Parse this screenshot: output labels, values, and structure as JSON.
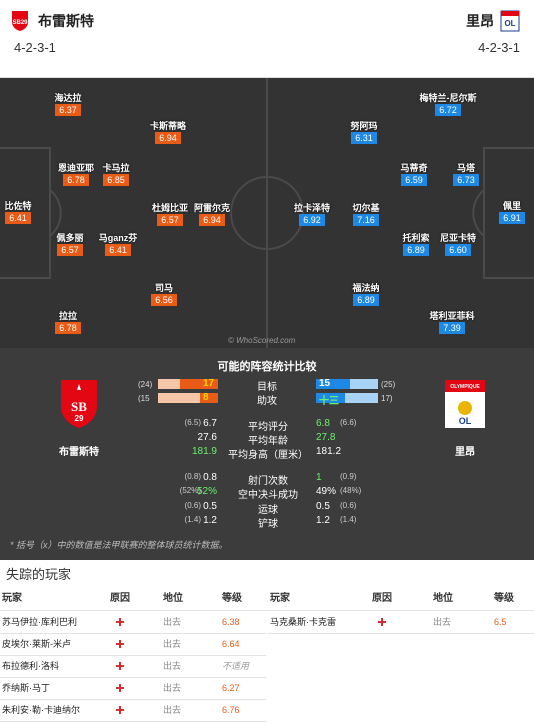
{
  "header": {
    "home_name": "布雷斯特",
    "away_name": "里昂",
    "home_formation": "4-2-3-1",
    "away_formation": "4-2-3-1"
  },
  "pitch": {
    "watermark": "© WhoScored.com",
    "home_players": [
      {
        "name": "比佐特",
        "rating": "6.41"
      },
      {
        "name": "海达拉",
        "rating": "6.37"
      },
      {
        "name": "恩迪亚耶",
        "rating": "6.78"
      },
      {
        "name": "卡马拉",
        "rating": "6.85"
      },
      {
        "name": "杜姆比亚",
        "rating": "6.57"
      },
      {
        "name": "阿雷尔克",
        "rating": "6.94"
      },
      {
        "name": "卡斯蒂略",
        "rating": "6.94"
      },
      {
        "name": "佩多丽",
        "rating": "6.57"
      },
      {
        "name": "马ganz芬",
        "rating": "6.41"
      },
      {
        "name": "司马",
        "rating": "6.56"
      },
      {
        "name": "拉拉",
        "rating": "6.78"
      }
    ],
    "away_players": [
      {
        "name": "佩里",
        "rating": "6.91"
      },
      {
        "name": "梅特兰-尼尔斯",
        "rating": "6.72"
      },
      {
        "name": "努阿玛",
        "rating": "6.31"
      },
      {
        "name": "马蒂奇",
        "rating": "6.59"
      },
      {
        "name": "马塔",
        "rating": "6.73"
      },
      {
        "name": "拉卡泽特",
        "rating": "6.92"
      },
      {
        "name": "切尔基",
        "rating": "7.16"
      },
      {
        "name": "托利索",
        "rating": "6.89"
      },
      {
        "name": "尼亚卡特",
        "rating": "6.60"
      },
      {
        "name": "福法纳",
        "rating": "6.89"
      },
      {
        "name": "塔利亚菲科",
        "rating": "7.39"
      }
    ]
  },
  "stats": {
    "title": "可能的阵容统计比较",
    "home_label": "布雷斯特",
    "away_label": "里昂",
    "bars": [
      {
        "label": "目标",
        "home": 17,
        "away": 15,
        "home_prior": "(24)",
        "away_prior": "(25)"
      },
      {
        "label": "助攻",
        "home": 8,
        "away": 13,
        "away_text": "十三",
        "home_prior": "(15",
        "away_prior": "17)"
      }
    ],
    "rows": [
      {
        "label": "平均评分",
        "home_prior": "(6.5)",
        "home": "6.7",
        "away": "6.8",
        "away_prior": "(6.6)"
      },
      {
        "label": "平均年龄",
        "home_prior": "",
        "home": "27.6",
        "away": "27.8",
        "away_prior": ""
      },
      {
        "label": "平均身高（厘米）",
        "home_prior": "",
        "home": "181.9",
        "away": "181.2",
        "away_prior": ""
      },
      {
        "label": "射门次数",
        "home_prior": "(0.8)",
        "home": "0.8",
        "away": "1",
        "away_prior": "(0.9)"
      },
      {
        "label": "空中决斗成功",
        "home_prior": "(52%)",
        "home": "52%",
        "away": "49%",
        "away_prior": "(48%)"
      },
      {
        "label": "运球",
        "home_prior": "(0.6)",
        "home": "0.5",
        "away": "0.5",
        "away_prior": "(0.6)"
      },
      {
        "label": "铲球",
        "home_prior": "(1.4)",
        "home": "1.2",
        "away": "1.2",
        "away_prior": "(1.4)"
      }
    ],
    "note": "* 括号（x）中的数值是法甲联赛的整体球员统计数据。"
  },
  "missing": {
    "title": "失踪的玩家",
    "headers": [
      "玩家",
      "原因",
      "地位",
      "等级"
    ],
    "home": [
      {
        "player": "苏马伊拉·库利巴利",
        "status": "出去",
        "rating": "6.38"
      },
      {
        "player": "皮埃尔·莱斯-米卢",
        "status": "出去",
        "rating": "6.64"
      },
      {
        "player": "布拉德利·洛科",
        "status": "出去",
        "rating": "不适用"
      },
      {
        "player": "乔纳斯·马丁",
        "status": "出去",
        "rating": "6.27"
      },
      {
        "player": "朱利安·勒·卡迪纳尔",
        "status": "出去",
        "rating": "6.76"
      }
    ],
    "away": [
      {
        "player": "马克桑斯·卡克雷",
        "status": "出去",
        "rating": "6.5"
      }
    ]
  },
  "colors": {
    "home": "#e95c18",
    "away": "#1e88e5",
    "pitch": "#333333",
    "stats_bg": "#3c3c3c"
  }
}
